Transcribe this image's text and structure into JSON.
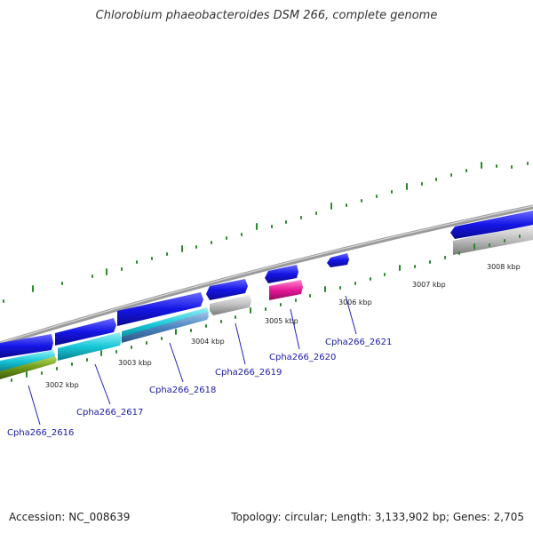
{
  "title": "Chlorobium phaeobacteroides DSM 266, complete genome",
  "footer": {
    "accession": "Accession: NC_008639",
    "summary": "Topology: circular; Length: 3,133,902 bp; Genes: 2,705"
  },
  "scale_labels": [
    "3002 kbp",
    "3003 kbp",
    "3004 kbp",
    "3005 kbp",
    "3006 kbp",
    "3007 kbp",
    "3008 kbp"
  ],
  "gene_labels": [
    "Cpha266_2616",
    "Cpha266_2617",
    "Cpha266_2618",
    "Cpha266_2619",
    "Cpha266_2620",
    "Cpha266_2621"
  ],
  "colors": {
    "backbone": "#8a8a8a",
    "cds_forward": "#1515e6",
    "cds_cyan": "#18c8d8",
    "cds_steel": "#4a84c0",
    "cds_olive": "#6f9a1a",
    "cds_grey": "#b8b8b8",
    "cds_magenta": "#e8189a",
    "tick": "#2a8a2a",
    "label": "#1a1aa8"
  }
}
